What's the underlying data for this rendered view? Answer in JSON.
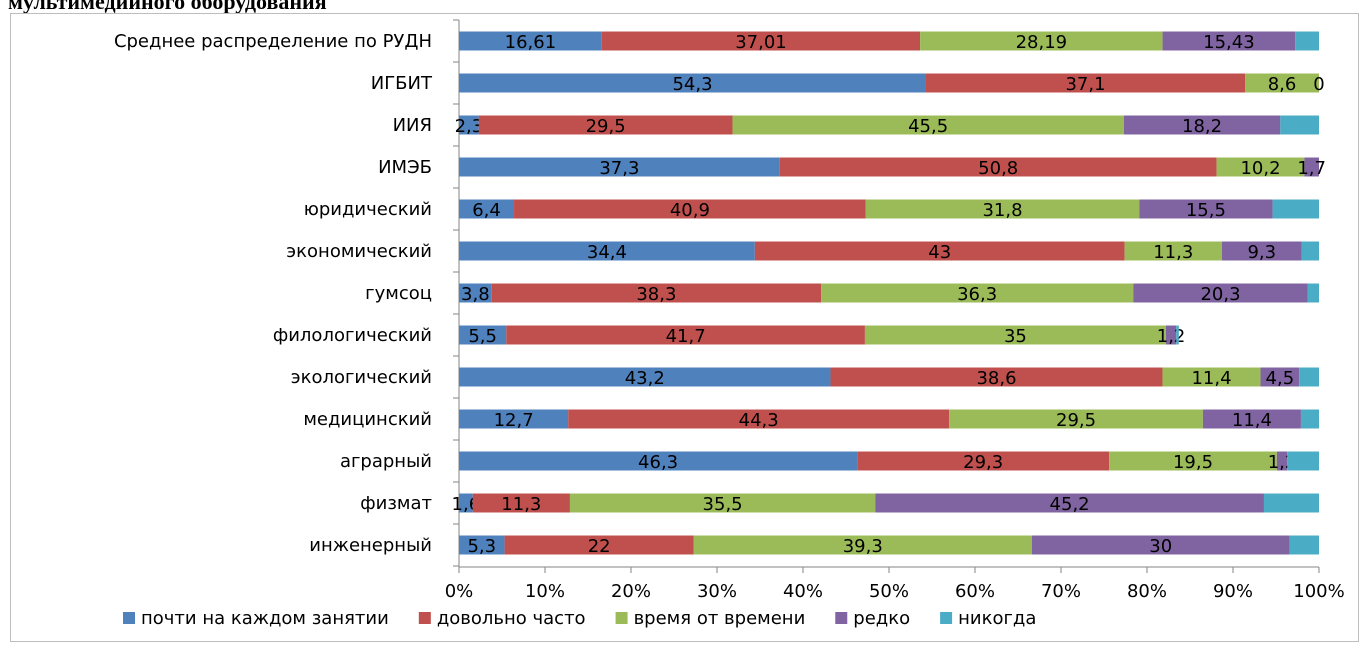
{
  "title": "мультимедийного оборудования",
  "chart_data": {
    "type": "bar",
    "orientation": "horizontal",
    "stacked": "percent",
    "categories": [
      "Среднее распределение по РУДН",
      "ИГБИТ",
      "ИИЯ",
      "ИМЭБ",
      "юридический",
      "экономический",
      "гумсоц",
      "филологический",
      "экологический",
      "медицинский",
      "аграрный",
      "физмат",
      "инженерный"
    ],
    "series": [
      {
        "name": "почти на каждом занятии",
        "color": "#4f81bd",
        "values": [
          16.61,
          54.3,
          2.3,
          37.3,
          6.4,
          34.4,
          3.8,
          5.5,
          43.2,
          12.7,
          46.3,
          1.6,
          5.3
        ],
        "labels": [
          "16,61",
          "54,3",
          "2,3",
          "37,3",
          "6,4",
          "34,4",
          "3,8",
          "5,5",
          "43,2",
          "12,7",
          "46,3",
          "1,6",
          "5,3"
        ]
      },
      {
        "name": "довольно часто",
        "color": "#c0504d",
        "values": [
          37.01,
          37.1,
          29.5,
          50.8,
          40.9,
          43,
          38.3,
          41.7,
          38.6,
          44.3,
          29.3,
          11.3,
          22
        ],
        "labels": [
          "37,01",
          "37,1",
          "29,5",
          "50,8",
          "40,9",
          "43",
          "38,3",
          "41,7",
          "38,6",
          "44,3",
          "29,3",
          "11,3",
          "22"
        ]
      },
      {
        "name": "время от времени",
        "color": "#9bbb59",
        "values": [
          28.19,
          8.6,
          45.5,
          10.2,
          31.8,
          11.3,
          36.3,
          35,
          11.4,
          29.5,
          19.5,
          35.5,
          39.3
        ],
        "labels": [
          "28,19",
          "8,6",
          "45,5",
          "10,2",
          "31,8",
          "11,3",
          "36,3",
          "35",
          "11,4",
          "29,5",
          "19,5",
          "35,5",
          "39,3"
        ]
      },
      {
        "name": "редко",
        "color": "#8064a2",
        "values": [
          15.43,
          0,
          18.2,
          1.7,
          15.5,
          9.3,
          20.3,
          1.2,
          4.5,
          11.4,
          1.2,
          45.2,
          30
        ],
        "labels": [
          "15,43",
          "0",
          "18,2",
          "1,7",
          "15,5",
          "9,3",
          "20,3",
          "1,2",
          "4,5",
          "11,4",
          "1,2",
          "45,2",
          "30"
        ]
      },
      {
        "name": "никогда",
        "color": "#4bacc6",
        "values": [
          2.76,
          0,
          4.5,
          0,
          5.4,
          2.0,
          1.3,
          0.3,
          2.3,
          2.1,
          3.7,
          6.4,
          3.4
        ]
      }
    ],
    "xlim": [
      0,
      100
    ],
    "xticks": [
      "0%",
      "10%",
      "20%",
      "30%",
      "40%",
      "50%",
      "60%",
      "70%",
      "80%",
      "90%",
      "100%"
    ],
    "grid": false,
    "legend": "bottom"
  }
}
